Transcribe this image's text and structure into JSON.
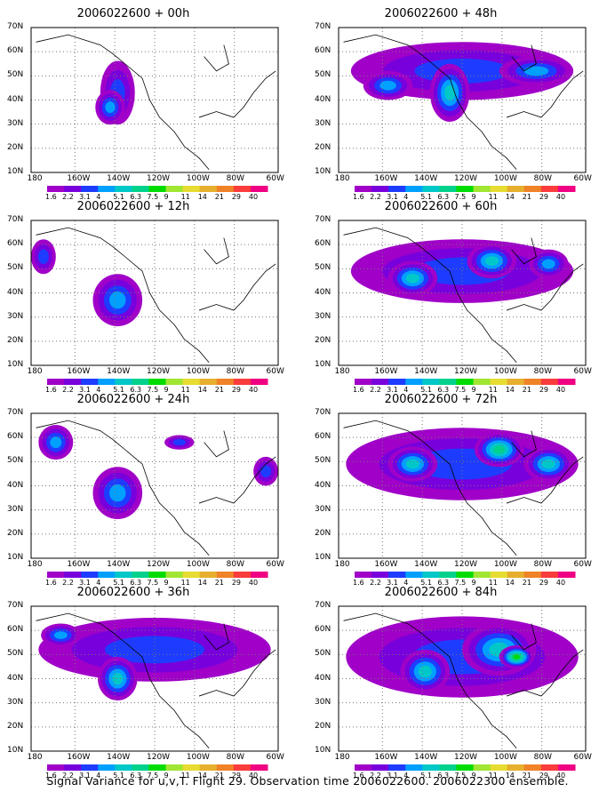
{
  "panels": [
    {
      "title": "2006022600 + 00h"
    },
    {
      "title": "2006022600 + 48h"
    },
    {
      "title": "2006022600 + 12h"
    },
    {
      "title": "2006022600 + 60h"
    },
    {
      "title": "2006022600 + 24h"
    },
    {
      "title": "2006022600 + 72h"
    },
    {
      "title": "2006022600 + 36h"
    },
    {
      "title": "2006022600 + 84h"
    }
  ],
  "map_axes": {
    "lat_labels": [
      "70N",
      "60N",
      "50N",
      "40N",
      "30N",
      "20N",
      "10N"
    ],
    "lon_labels": [
      "180",
      "160W",
      "140W",
      "120W",
      "100W",
      "80W",
      "60W"
    ]
  },
  "colorbar": {
    "colors": [
      "#a000c8",
      "#7800dc",
      "#1e3cff",
      "#00a0ff",
      "#00c8c8",
      "#00d28c",
      "#00dc00",
      "#a0e632",
      "#e6dc32",
      "#e6af2d",
      "#f08228",
      "#fa3c3c",
      "#f00082"
    ],
    "labels": [
      "1.6",
      "2.2",
      "3.1",
      "4",
      "5.1",
      "6.3",
      "7.5",
      "9",
      "11",
      "14",
      "21",
      "29",
      "40"
    ]
  },
  "caption": "Signal Variance for u,v,T. Flight 29. Observation time 2006022600. 2006022300 ensemble."
}
